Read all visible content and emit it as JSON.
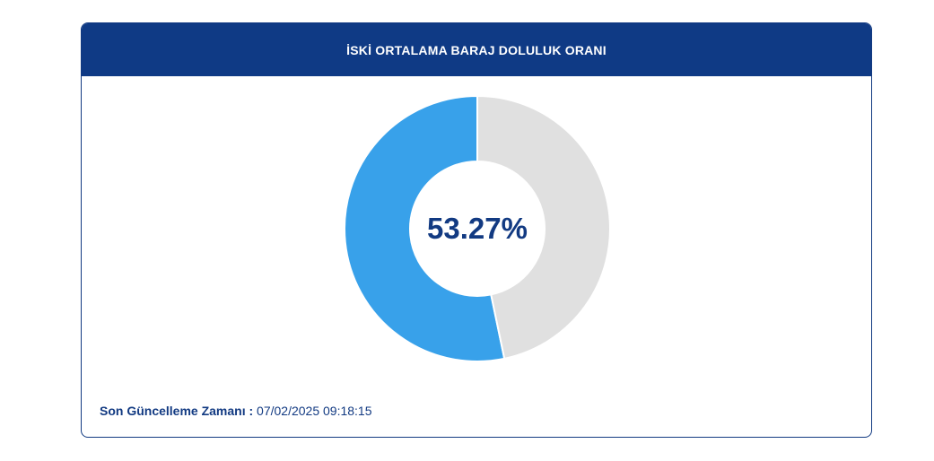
{
  "header": {
    "title": "İSKİ ORTALAMA BARAJ DOLULUK ORANI"
  },
  "chart_data": {
    "type": "pie",
    "variant": "donut",
    "center_label": "53.27%",
    "slices": [
      {
        "value": 53.27,
        "color": "#38a1ea"
      },
      {
        "value": 46.73,
        "color": "#e0e0e0"
      }
    ]
  },
  "footer": {
    "label": "Son Güncelleme Zamanı :",
    "value": "07/02/2025 09:18:15"
  },
  "colors": {
    "header_bg": "#0f3a85",
    "text_primary": "#123a82",
    "filled": "#38a1ea",
    "empty": "#e0e0e0"
  }
}
